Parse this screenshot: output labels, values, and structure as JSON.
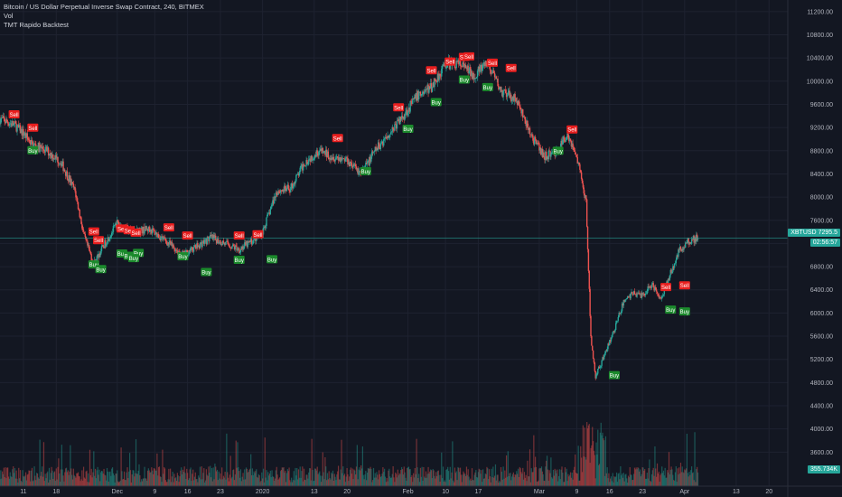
{
  "legend": {
    "title": "Bitcoin / US Dollar Perpetual Inverse Swap Contract, 240, BITMEX",
    "line2": "Vol",
    "line3": "TMT Rapido Backtest"
  },
  "badges": {
    "symbol": "XBTUSD",
    "price": "7295.5",
    "countdown": "02:56:57",
    "volume": "355.734K"
  },
  "colors": {
    "background": "#131722",
    "grid": "#1e2230",
    "up": "#26a69a",
    "down": "#ef5350",
    "sell": "#e91e1e",
    "buy": "#1b8a2c",
    "price_line": "#26a69a"
  },
  "chart_data": {
    "type": "candlestick",
    "y_ticks": [
      11200,
      10800,
      10400,
      10000,
      9600,
      9200,
      8800,
      8400,
      8000,
      7600,
      7200,
      6800,
      6400,
      6000,
      5600,
      5200,
      4800,
      4400,
      4000,
      3600
    ],
    "ylim": [
      3200,
      11400
    ],
    "x_ticks": [
      "11",
      "18",
      "Dec",
      "9",
      "16",
      "23",
      "2020",
      "13",
      "20",
      "Feb",
      "10",
      "17",
      "Mar",
      "9",
      "16",
      "23",
      "Apr",
      "13",
      "20"
    ],
    "x_tick_days": [
      0,
      7,
      20,
      28,
      35,
      42,
      51,
      62,
      69,
      82,
      90,
      97,
      110,
      118,
      125,
      132,
      141,
      152,
      159
    ],
    "x_range_days": [
      -5,
      163
    ],
    "price_path": [
      [
        -5,
        9350
      ],
      [
        -2,
        9250
      ],
      [
        0,
        9100
      ],
      [
        2,
        8900
      ],
      [
        5,
        8800
      ],
      [
        8,
        8600
      ],
      [
        11,
        8100
      ],
      [
        13,
        7300
      ],
      [
        15,
        6850
      ],
      [
        17,
        7150
      ],
      [
        20,
        7550
      ],
      [
        23,
        7400
      ],
      [
        27,
        7450
      ],
      [
        31,
        7200
      ],
      [
        34,
        7000
      ],
      [
        37,
        7150
      ],
      [
        40,
        7300
      ],
      [
        43,
        7200
      ],
      [
        46,
        7100
      ],
      [
        49,
        7250
      ],
      [
        51,
        7400
      ],
      [
        54,
        8100
      ],
      [
        57,
        8150
      ],
      [
        60,
        8600
      ],
      [
        63,
        8800
      ],
      [
        66,
        8700
      ],
      [
        69,
        8650
      ],
      [
        72,
        8400
      ],
      [
        75,
        8800
      ],
      [
        78,
        9100
      ],
      [
        81,
        9400
      ],
      [
        84,
        9750
      ],
      [
        87,
        9900
      ],
      [
        90,
        10300
      ],
      [
        93,
        10300
      ],
      [
        96,
        10100
      ],
      [
        99,
        10300
      ],
      [
        102,
        9800
      ],
      [
        105,
        9700
      ],
      [
        108,
        9100
      ],
      [
        111,
        8700
      ],
      [
        114,
        8800
      ],
      [
        116,
        9100
      ],
      [
        118,
        8700
      ],
      [
        120,
        7900
      ],
      [
        121,
        5600
      ],
      [
        122,
        4900
      ],
      [
        124,
        5300
      ],
      [
        126,
        5700
      ],
      [
        128,
        6200
      ],
      [
        130,
        6350
      ],
      [
        132,
        6300
      ],
      [
        134,
        6500
      ],
      [
        136,
        6250
      ],
      [
        138,
        6700
      ],
      [
        140,
        7100
      ],
      [
        142,
        7250
      ],
      [
        144,
        7300
      ]
    ],
    "signals": [
      {
        "type": "Sell",
        "day": -2,
        "price": 9420
      },
      {
        "type": "Sell",
        "day": 2,
        "price": 9190
      },
      {
        "type": "Buy",
        "day": 2,
        "price": 8800
      },
      {
        "type": "Sell",
        "day": 15,
        "price": 7400
      },
      {
        "type": "Sell",
        "day": 16,
        "price": 7250
      },
      {
        "type": "Buy",
        "day": 15,
        "price": 6830
      },
      {
        "type": "Buy",
        "day": 16.5,
        "price": 6750
      },
      {
        "type": "Sell",
        "day": 21,
        "price": 7450
      },
      {
        "type": "Sell",
        "day": 22.5,
        "price": 7420
      },
      {
        "type": "Sell",
        "day": 24,
        "price": 7380
      },
      {
        "type": "Buy",
        "day": 21,
        "price": 7020
      },
      {
        "type": "Buy",
        "day": 22.5,
        "price": 6980
      },
      {
        "type": "Buy",
        "day": 24.5,
        "price": 7030
      },
      {
        "type": "Buy",
        "day": 23.5,
        "price": 6940
      },
      {
        "type": "Sell",
        "day": 31,
        "price": 7470
      },
      {
        "type": "Sell",
        "day": 35,
        "price": 7330
      },
      {
        "type": "Buy",
        "day": 34,
        "price": 6970
      },
      {
        "type": "Buy",
        "day": 39,
        "price": 6700
      },
      {
        "type": "Sell",
        "day": 46,
        "price": 7330
      },
      {
        "type": "Sell",
        "day": 50,
        "price": 7350
      },
      {
        "type": "Buy",
        "day": 46,
        "price": 6910
      },
      {
        "type": "Buy",
        "day": 53,
        "price": 6920
      },
      {
        "type": "Sell",
        "day": 67,
        "price": 9010
      },
      {
        "type": "Buy",
        "day": 73,
        "price": 8440
      },
      {
        "type": "Sell",
        "day": 80,
        "price": 9540
      },
      {
        "type": "Buy",
        "day": 82,
        "price": 9170
      },
      {
        "type": "Sell",
        "day": 87,
        "price": 10180
      },
      {
        "type": "Buy",
        "day": 88,
        "price": 9630
      },
      {
        "type": "Sell",
        "day": 91,
        "price": 10330
      },
      {
        "type": "Sell",
        "day": 94,
        "price": 10410
      },
      {
        "type": "Sell",
        "day": 95,
        "price": 10420
      },
      {
        "type": "Buy",
        "day": 94,
        "price": 10020
      },
      {
        "type": "Sell",
        "day": 100,
        "price": 10310
      },
      {
        "type": "Buy",
        "day": 99,
        "price": 9890
      },
      {
        "type": "Sell",
        "day": 104,
        "price": 10220
      },
      {
        "type": "Sell",
        "day": 117,
        "price": 9160
      },
      {
        "type": "Buy",
        "day": 114,
        "price": 8790
      },
      {
        "type": "Buy",
        "day": 126,
        "price": 4920
      },
      {
        "type": "Sell",
        "day": 137,
        "price": 6440
      },
      {
        "type": "Sell",
        "day": 141,
        "price": 6470
      },
      {
        "type": "Buy",
        "day": 138,
        "price": 6050
      },
      {
        "type": "Buy",
        "day": 141,
        "price": 6020
      }
    ]
  }
}
